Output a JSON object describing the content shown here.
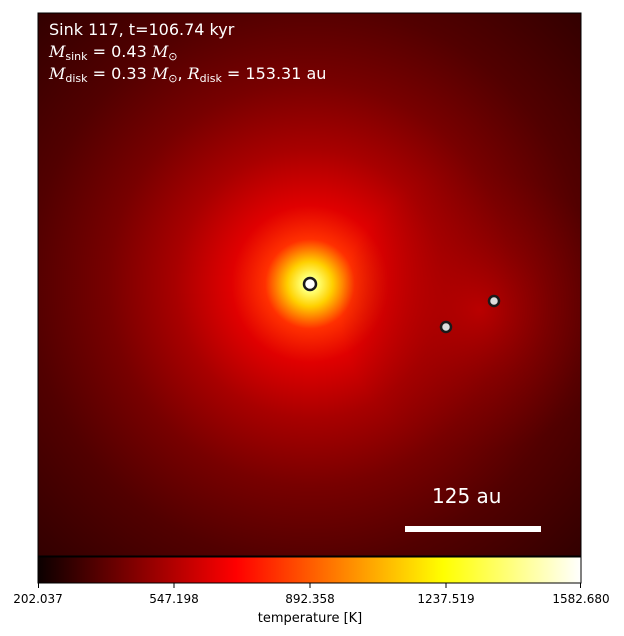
{
  "annotations": {
    "title": "Sink 117, t=106.74 kyr",
    "sink_mass_symbol": "M",
    "sink_mass_subscript": "sink",
    "sink_mass_value": "= 0.43",
    "sink_mass_unit": "M",
    "disk_mass_symbol": "M",
    "disk_mass_subscript": "disk",
    "disk_mass_value": "= 0.33",
    "disk_radius_symbol": "R",
    "disk_radius_subscript": "disk",
    "disk_radius_value": "= 153.31 au",
    "solar_symbol": "⊙"
  },
  "scale_bar": {
    "label": "125 au"
  },
  "colorbar": {
    "label": "temperature [K]",
    "min": 202.037,
    "max": 1582.68,
    "ticks": [
      "202.037",
      "547.198",
      "892.358",
      "1237.519",
      "1582.680"
    ],
    "colormap": "hot",
    "colors": [
      "#0b0000",
      "#ff0000",
      "#ffff00",
      "#ffffff"
    ]
  },
  "sinks": [
    {
      "id": "primary",
      "role": "central sink"
    },
    {
      "id": "companion-1",
      "role": "companion sink"
    },
    {
      "id": "companion-2",
      "role": "companion sink"
    }
  ]
}
